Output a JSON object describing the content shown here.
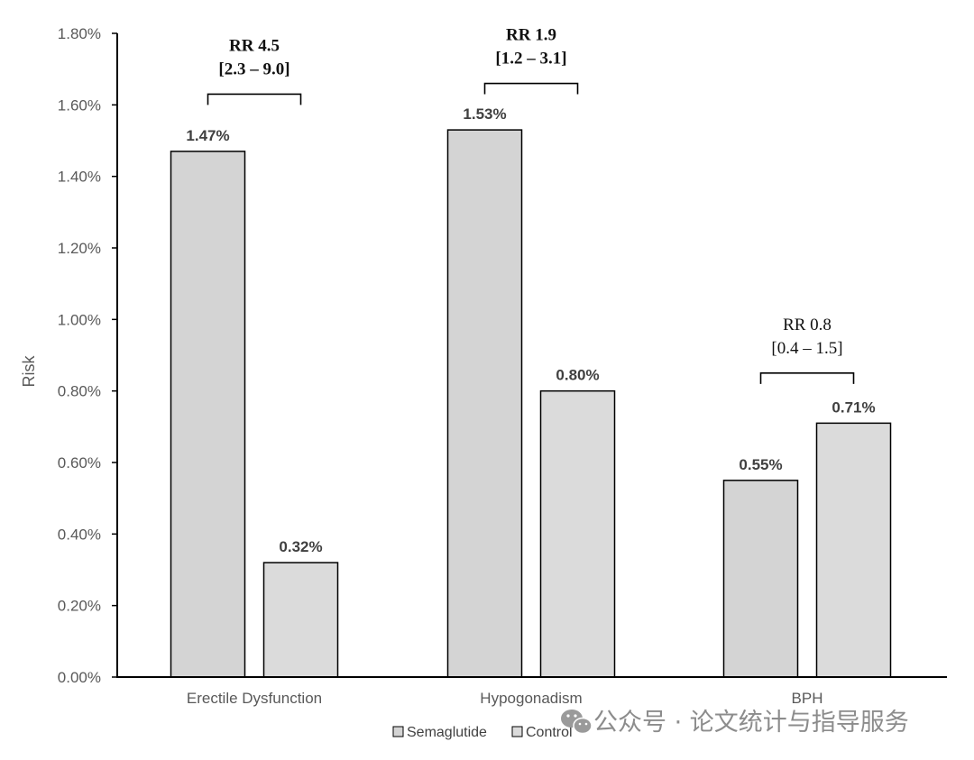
{
  "chart_data": {
    "type": "bar",
    "ylabel": "Risk",
    "xlabel": "",
    "ylim": [
      0,
      1.8
    ],
    "ytick_step": 0.2,
    "ytick_labels": [
      "0.00%",
      "0.20%",
      "0.40%",
      "0.60%",
      "0.80%",
      "1.00%",
      "1.20%",
      "1.40%",
      "1.60%",
      "1.80%"
    ],
    "categories": [
      "Erectile Dysfunction",
      "Hypogonadism",
      "BPH"
    ],
    "series": [
      {
        "name": "Semaglutide",
        "values": [
          1.47,
          1.53,
          0.55
        ],
        "labels": [
          "1.47%",
          "1.53%",
          "0.55%"
        ],
        "color": "#d4d4d4"
      },
      {
        "name": "Control",
        "values": [
          0.32,
          0.8,
          0.71
        ],
        "labels": [
          "0.32%",
          "0.80%",
          "0.71%"
        ],
        "color": "#dbdbdb"
      }
    ],
    "annotations": [
      {
        "category": "Erectile Dysfunction",
        "line1": "RR 4.5",
        "line2": "[2.3 – 9.0]",
        "bold": true,
        "bracket_value": 1.63
      },
      {
        "category": "Hypogonadism",
        "line1": "RR 1.9",
        "line2": "[1.2 – 3.1]",
        "bold": true,
        "bracket_value": 1.66
      },
      {
        "category": "BPH",
        "line1": "RR 0.8",
        "line2": "[0.4 – 1.5]",
        "bold": false,
        "bracket_value": 0.85
      }
    ],
    "legend_position": "bottom-center",
    "grid": false,
    "bar_border_color": "#000000"
  },
  "watermark": {
    "text": "公众号 · 论文统计与指导服务",
    "icon": "wechat-icon"
  }
}
